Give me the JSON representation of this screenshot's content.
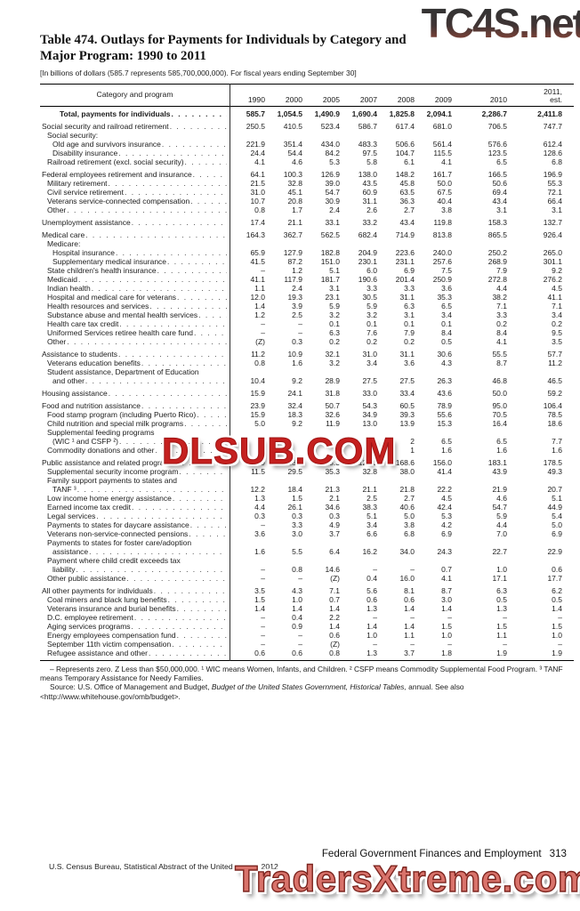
{
  "watermarks": {
    "top": "TC4S.net",
    "middle": "DLSUB.COM",
    "bottom": "TradersXtreme.com"
  },
  "colors": {
    "watermark_red": "#c5201f",
    "watermark_salmon": "#d9736b",
    "watermark_charcoal": "#3f3432"
  },
  "title": {
    "line1": "Table 474. Outlays for Payments for Individuals by Category and",
    "line2": "Major Program: 1990 to 2011"
  },
  "subtitle": "[In billions of dollars (585.7 represents 585,700,000,000). For fiscal years ending September 30]",
  "table": {
    "label_header": "Category and program",
    "year_headers": [
      "1990",
      "2000",
      "2005",
      "2007",
      "2008",
      "2009",
      "2010",
      "2011,|est."
    ],
    "rows": [
      {
        "label": "Total, payments for individuals",
        "indent": "t",
        "bold": true,
        "values": [
          "585.7",
          "1,054.5",
          "1,490.9",
          "1,690.4",
          "1,825.8",
          "2,094.1",
          "2,286.7",
          "2,411.8"
        ]
      },
      {
        "label": "Social security and railroad retirement",
        "indent": "0",
        "gs": true,
        "values": [
          "250.5",
          "410.5",
          "523.4",
          "586.7",
          "617.4",
          "681.0",
          "706.5",
          "747.7"
        ]
      },
      {
        "label": "Social security:",
        "indent": "1",
        "header": true
      },
      {
        "label": "Old age and survivors insurance",
        "indent": "2",
        "values": [
          "221.9",
          "351.4",
          "434.0",
          "483.3",
          "506.6",
          "561.4",
          "576.6",
          "612.4"
        ]
      },
      {
        "label": "Disability insurance",
        "indent": "2",
        "values": [
          "24.4",
          "54.4",
          "84.2",
          "97.5",
          "104.7",
          "115.5",
          "123.5",
          "128.6"
        ]
      },
      {
        "label": "Railroad retirement (excl. social security)",
        "indent": "1",
        "values": [
          "4.1",
          "4.6",
          "5.3",
          "5.8",
          "6.1",
          "4.1",
          "6.5",
          "6.8"
        ]
      },
      {
        "label": "Federal employees retirement and insurance",
        "indent": "0",
        "gs": true,
        "values": [
          "64.1",
          "100.3",
          "126.9",
          "138.0",
          "148.2",
          "161.7",
          "166.5",
          "196.9"
        ]
      },
      {
        "label": "Military retirement",
        "indent": "1",
        "values": [
          "21.5",
          "32.8",
          "39.0",
          "43.5",
          "45.8",
          "50.0",
          "50.6",
          "55.3"
        ]
      },
      {
        "label": "Civil service retirement",
        "indent": "1",
        "values": [
          "31.0",
          "45.1",
          "54.7",
          "60.9",
          "63.5",
          "67.5",
          "69.4",
          "72.1"
        ]
      },
      {
        "label": "Veterans service-connected compensation",
        "indent": "1",
        "values": [
          "10.7",
          "20.8",
          "30.9",
          "31.1",
          "36.3",
          "40.4",
          "43.4",
          "66.4"
        ]
      },
      {
        "label": "Other",
        "indent": "1",
        "values": [
          "0.8",
          "1.7",
          "2.4",
          "2.6",
          "2.7",
          "3.8",
          "3.1",
          "3.1"
        ]
      },
      {
        "label": "Unemployment assistance",
        "indent": "0",
        "gs": true,
        "values": [
          "17.4",
          "21.1",
          "33.1",
          "33.2",
          "43.4",
          "119.8",
          "158.3",
          "132.7"
        ]
      },
      {
        "label": "Medical care",
        "indent": "0",
        "gs": true,
        "values": [
          "164.3",
          "362.7",
          "562.5",
          "682.4",
          "714.9",
          "813.8",
          "865.5",
          "926.4"
        ]
      },
      {
        "label": "Medicare:",
        "indent": "1",
        "header": true
      },
      {
        "label": "Hospital insurance",
        "indent": "2",
        "values": [
          "65.9",
          "127.9",
          "182.8",
          "204.9",
          "223.6",
          "240.0",
          "250.2",
          "265.0"
        ]
      },
      {
        "label": "Supplementary medical insurance",
        "indent": "2",
        "values": [
          "41.5",
          "87.2",
          "151.0",
          "230.1",
          "231.1",
          "257.6",
          "268.9",
          "301.1"
        ]
      },
      {
        "label": "State children's health insurance",
        "indent": "1",
        "values": [
          "–",
          "1.2",
          "5.1",
          "6.0",
          "6.9",
          "7.5",
          "7.9",
          "9.2"
        ]
      },
      {
        "label": "Medicaid",
        "indent": "1",
        "values": [
          "41.1",
          "117.9",
          "181.7",
          "190.6",
          "201.4",
          "250.9",
          "272.8",
          "276.2"
        ]
      },
      {
        "label": "Indian health",
        "indent": "1",
        "values": [
          "1.1",
          "2.4",
          "3.1",
          "3.3",
          "3.3",
          "3.6",
          "4.4",
          "4.5"
        ]
      },
      {
        "label": "Hospital and medical care for veterans",
        "indent": "1",
        "values": [
          "12.0",
          "19.3",
          "23.1",
          "30.5",
          "31.1",
          "35.3",
          "38.2",
          "41.1"
        ]
      },
      {
        "label": "Health resources and services",
        "indent": "1",
        "values": [
          "1.4",
          "3.9",
          "5.9",
          "5.9",
          "6.3",
          "6.5",
          "7.1",
          "7.1"
        ]
      },
      {
        "label": "Substance abuse and mental health services",
        "indent": "1",
        "values": [
          "1.2",
          "2.5",
          "3.2",
          "3.2",
          "3.1",
          "3.4",
          "3.3",
          "3.4"
        ]
      },
      {
        "label": "Health care tax credit",
        "indent": "1",
        "values": [
          "–",
          "–",
          "0.1",
          "0.1",
          "0.1",
          "0.1",
          "0.2",
          "0.2"
        ]
      },
      {
        "label": "Uniformed Services retiree health care fund",
        "indent": "1",
        "values": [
          "–",
          "–",
          "6.3",
          "7.6",
          "7.9",
          "8.4",
          "8.4",
          "9.5"
        ]
      },
      {
        "label": "Other",
        "indent": "1",
        "values": [
          "(Z)",
          "0.3",
          "0.2",
          "0.2",
          "0.2",
          "0.5",
          "4.1",
          "3.5"
        ]
      },
      {
        "label": "Assistance to students",
        "indent": "0",
        "gs": true,
        "values": [
          "11.2",
          "10.9",
          "32.1",
          "31.0",
          "31.1",
          "30.6",
          "55.5",
          "57.7"
        ]
      },
      {
        "label": "Veterans education benefits",
        "indent": "1",
        "values": [
          "0.8",
          "1.6",
          "3.2",
          "3.4",
          "3.6",
          "4.3",
          "8.7",
          "11.2"
        ]
      },
      {
        "pre": "Student assistance, Department of Education",
        "pre_indent": "1",
        "label": "and other",
        "indent": "2",
        "values": [
          "10.4",
          "9.2",
          "28.9",
          "27.5",
          "27.5",
          "26.3",
          "46.8",
          "46.5"
        ]
      },
      {
        "label": "Housing assistance",
        "indent": "0",
        "gs": true,
        "values": [
          "15.9",
          "24.1",
          "31.8",
          "33.0",
          "33.4",
          "43.6",
          "50.0",
          "59.2"
        ]
      },
      {
        "label": "Food and nutrition assistance",
        "indent": "0",
        "gs": true,
        "values": [
          "23.9",
          "32.4",
          "50.7",
          "54.3",
          "60.5",
          "78.9",
          "95.0",
          "106.4"
        ]
      },
      {
        "label": "Food stamp program (including Puerto Rico)",
        "indent": "1",
        "values": [
          "15.9",
          "18.3",
          "32.6",
          "34.9",
          "39.3",
          "55.6",
          "70.5",
          "78.5"
        ]
      },
      {
        "label": "Child nutrition and special milk programs",
        "indent": "1",
        "values": [
          "5.0",
          "9.2",
          "11.9",
          "13.0",
          "13.9",
          "15.3",
          "16.4",
          "18.6"
        ]
      },
      {
        "pre": "Supplemental feeding programs",
        "pre_indent": "1",
        "label": "(WIC ¹ and CSFP ²)",
        "indent": "2",
        "values": [
          "",
          "",
          "",
          "",
          "2",
          "6.5",
          "6.5",
          "7.7"
        ]
      },
      {
        "label": "Commodity donations and other",
        "indent": "1",
        "values": [
          "",
          "",
          "",
          "",
          "1",
          "1.6",
          "1.6",
          "1.6"
        ]
      },
      {
        "label": "Public assistance and related programs",
        "indent": "0",
        "gs": true,
        "values": [
          "34.9",
          "88.3",
          "123.3",
          "126.3",
          "168.6",
          "156.0",
          "183.1",
          "178.5"
        ]
      },
      {
        "label": "Supplemental security income program",
        "indent": "1",
        "values": [
          "11.5",
          "29.5",
          "35.3",
          "32.8",
          "38.0",
          "41.4",
          "43.9",
          "49.3"
        ]
      },
      {
        "pre": "Family support payments to states and",
        "pre_indent": "1",
        "label": "TANF ³",
        "indent": "2",
        "values": [
          "12.2",
          "18.4",
          "21.3",
          "21.1",
          "21.8",
          "22.2",
          "21.9",
          "20.7"
        ]
      },
      {
        "label": "Low income home energy assistance",
        "indent": "1",
        "values": [
          "1.3",
          "1.5",
          "2.1",
          "2.5",
          "2.7",
          "4.5",
          "4.6",
          "5.1"
        ]
      },
      {
        "label": "Earned income tax credit",
        "indent": "1",
        "values": [
          "4.4",
          "26.1",
          "34.6",
          "38.3",
          "40.6",
          "42.4",
          "54.7",
          "44.9"
        ]
      },
      {
        "label": "Legal services",
        "indent": "1",
        "values": [
          "0.3",
          "0.3",
          "0.3",
          "5.1",
          "5.0",
          "5.3",
          "5.9",
          "5.4"
        ]
      },
      {
        "label": "Payments to states for daycare assistance",
        "indent": "1",
        "values": [
          "–",
          "3.3",
          "4.9",
          "3.4",
          "3.8",
          "4.2",
          "4.4",
          "5.0"
        ]
      },
      {
        "label": "Veterans non-service-connected pensions",
        "indent": "1",
        "values": [
          "3.6",
          "3.0",
          "3.7",
          "6.6",
          "6.8",
          "6.9",
          "7.0",
          "6.9"
        ]
      },
      {
        "pre": "Payments to states for foster care/adoption",
        "pre_indent": "1",
        "label": "assistance",
        "indent": "2",
        "values": [
          "1.6",
          "5.5",
          "6.4",
          "16.2",
          "34.0",
          "24.3",
          "22.7",
          "22.9"
        ]
      },
      {
        "pre": "Payment where child credit exceeds tax",
        "pre_indent": "1",
        "label": "liability",
        "indent": "2",
        "values": [
          "–",
          "0.8",
          "14.6",
          "–",
          "–",
          "0.7",
          "1.0",
          "0.6"
        ]
      },
      {
        "label": "Other public assistance",
        "indent": "1",
        "values": [
          "–",
          "–",
          "(Z)",
          "0.4",
          "16.0",
          "4.1",
          "17.1",
          "17.7"
        ]
      },
      {
        "label": "All other payments for individuals",
        "indent": "0",
        "gs": true,
        "values": [
          "3.5",
          "4.3",
          "7.1",
          "5.6",
          "8.1",
          "8.7",
          "6.3",
          "6.2"
        ]
      },
      {
        "label": "Coal miners and black lung benefits",
        "indent": "1",
        "values": [
          "1.5",
          "1.0",
          "0.7",
          "0.6",
          "0.6",
          "3.0",
          "0.5",
          "0.5"
        ]
      },
      {
        "label": "Veterans insurance and burial benefits",
        "indent": "1",
        "values": [
          "1.4",
          "1.4",
          "1.4",
          "1.3",
          "1.4",
          "1.4",
          "1.3",
          "1.4"
        ]
      },
      {
        "label": "D.C. employee retirement",
        "indent": "1",
        "values": [
          "–",
          "0.4",
          "2.2",
          "–",
          "–",
          "–",
          "–",
          "–"
        ]
      },
      {
        "label": "Aging services programs",
        "indent": "1",
        "values": [
          "–",
          "0.9",
          "1.4",
          "1.4",
          "1.4",
          "1.5",
          "1.5",
          "1.5"
        ]
      },
      {
        "label": "Energy employees compensation fund",
        "indent": "1",
        "values": [
          "–",
          "–",
          "0.6",
          "1.0",
          "1.1",
          "1.0",
          "1.1",
          "1.0"
        ]
      },
      {
        "label": "September 11th victim compensation",
        "indent": "1",
        "values": [
          "–",
          "–",
          "(Z)",
          "–",
          "–",
          "–",
          "–",
          "–"
        ]
      },
      {
        "label": "Refugee assistance and other",
        "indent": "1",
        "values": [
          "0.6",
          "0.6",
          "0.8",
          "1.3",
          "3.7",
          "1.8",
          "1.9",
          "1.9"
        ]
      }
    ]
  },
  "footnotes": {
    "line1": "– Represents zero. Z Less than $50,000,000. ¹ WIC means Women, Infants, and Children. ² CSFP means Commodity Supplemental Food Program. ³ TANF means Temporary Assistance for Needy Families.",
    "source_prefix": "Source: U.S. Office of Management and Budget, ",
    "source_italic": "Budget of the United States Government, Historical Tables,",
    "source_suffix": " annual. See also <http://www.whitehouse.gov/omb/budget>."
  },
  "footer": {
    "chapter": "Federal Government Finances and Employment",
    "page": "313",
    "attribution": "U.S. Census Bureau, Statistical Abstract of the United States: 2012"
  }
}
